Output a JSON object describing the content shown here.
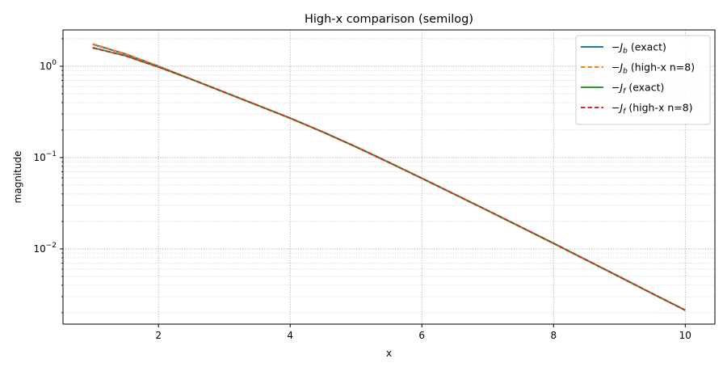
{
  "chart_data": {
    "type": "line",
    "title": "High-x comparison (semilog)",
    "xlabel": "x",
    "ylabel": "magnitude",
    "xlim": [
      0.55,
      10.45
    ],
    "ylim": [
      0.0015,
      2.5
    ],
    "yscale": "log",
    "grid": true,
    "grid_minor": true,
    "legend_position": "top-right",
    "xticks": [
      2,
      4,
      6,
      8,
      10
    ],
    "xtick_labels": [
      "2",
      "4",
      "6",
      "8",
      "10"
    ],
    "yticks": [
      {
        "value": 1,
        "mantissa": "10",
        "exp": "0"
      },
      {
        "value": 0.1,
        "mantissa": "10",
        "exp": "−1"
      },
      {
        "value": 0.01,
        "mantissa": "10",
        "exp": "−2"
      }
    ],
    "series": [
      {
        "name": "−J_b (exact)",
        "legend_prefix": "−J",
        "legend_sub": "b",
        "legend_suffix": " (exact)",
        "color": "#1f77b4",
        "dash": "solid",
        "x": [
          1,
          1.5,
          2,
          2.5,
          3,
          3.5,
          4,
          4.5,
          5,
          5.5,
          6,
          6.5,
          7,
          7.5,
          8,
          8.5,
          9,
          9.5,
          10
        ],
        "y": [
          1.74,
          1.36,
          1.0,
          0.72,
          0.52,
          0.375,
          0.27,
          0.19,
          0.131,
          0.0885,
          0.0593,
          0.0395,
          0.0263,
          0.0174,
          0.0115,
          0.00755,
          0.00495,
          0.00324,
          0.00213
        ]
      },
      {
        "name": "−J_b (high-x n=8)",
        "legend_prefix": "−J",
        "legend_sub": "b",
        "legend_suffix": " (high-x n=8)",
        "color": "#ff7f0e",
        "dash": "dashed",
        "x": [
          1,
          1.5,
          2,
          2.5,
          3,
          3.5,
          4,
          4.5,
          5,
          5.5,
          6,
          6.5,
          7,
          7.5,
          8,
          8.5,
          9,
          9.5,
          10
        ],
        "y": [
          1.76,
          1.37,
          1.0,
          0.72,
          0.52,
          0.375,
          0.27,
          0.19,
          0.131,
          0.0885,
          0.0593,
          0.0395,
          0.0263,
          0.0174,
          0.0115,
          0.00755,
          0.00495,
          0.00324,
          0.00213
        ]
      },
      {
        "name": "−J_f (exact)",
        "legend_prefix": "−J",
        "legend_sub": "f",
        "legend_suffix": " (exact)",
        "color": "#2ca02c",
        "dash": "solid",
        "x": [
          1,
          1.5,
          2,
          2.5,
          3,
          3.5,
          4,
          4.5,
          5,
          5.5,
          6,
          6.5,
          7,
          7.5,
          8,
          8.5,
          9,
          9.5,
          10
        ],
        "y": [
          1.6,
          1.3,
          0.98,
          0.72,
          0.52,
          0.375,
          0.27,
          0.19,
          0.131,
          0.0885,
          0.0593,
          0.0395,
          0.0263,
          0.0174,
          0.0115,
          0.00755,
          0.00495,
          0.00324,
          0.00213
        ]
      },
      {
        "name": "−J_f (high-x n=8)",
        "legend_prefix": "−J",
        "legend_sub": "f",
        "legend_suffix": " (high-x n=8)",
        "color": "#d62728",
        "dash": "dashed",
        "x": [
          1,
          1.5,
          2,
          2.5,
          3,
          3.5,
          4,
          4.5,
          5,
          5.5,
          6,
          6.5,
          7,
          7.5,
          8,
          8.5,
          9,
          9.5,
          10
        ],
        "y": [
          1.59,
          1.3,
          0.98,
          0.72,
          0.52,
          0.375,
          0.27,
          0.19,
          0.131,
          0.0885,
          0.0593,
          0.0395,
          0.0263,
          0.0174,
          0.0115,
          0.00755,
          0.00495,
          0.00324,
          0.00213
        ]
      }
    ]
  }
}
